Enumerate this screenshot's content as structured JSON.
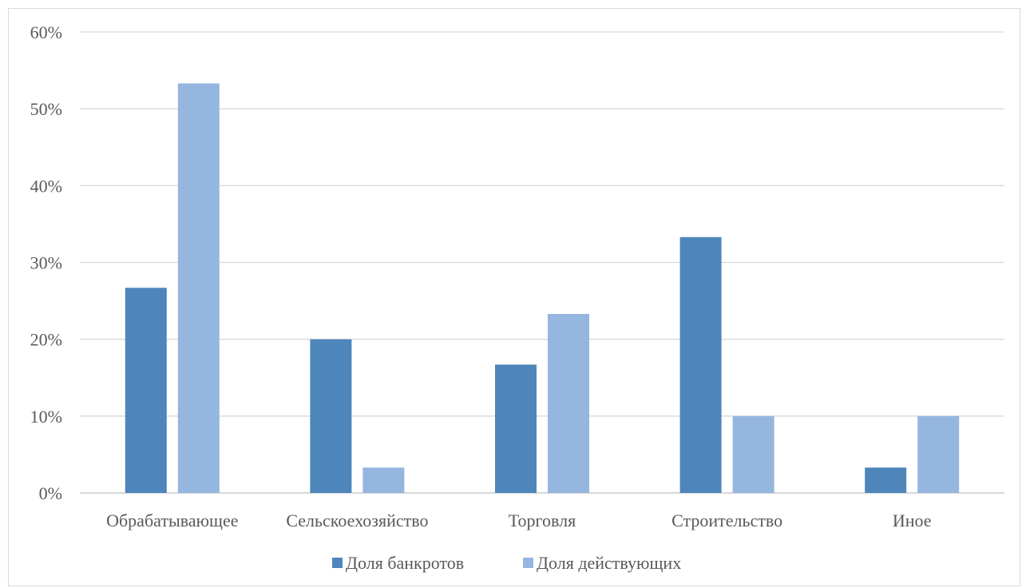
{
  "chart_data": {
    "type": "bar",
    "categories": [
      "Обрабатывающее",
      "Сельскоехозяйство",
      "Торговля",
      "Строительство",
      "Иное"
    ],
    "series": [
      {
        "name": "Доля банкротов",
        "values": [
          26.7,
          20.0,
          16.7,
          33.3,
          3.3
        ],
        "color": "#4e86bb"
      },
      {
        "name": "Доля действующих",
        "values": [
          53.3,
          3.3,
          23.3,
          10.0,
          10.0
        ],
        "color": "#95b6df"
      }
    ],
    "y_ticks": [
      "0%",
      "10%",
      "20%",
      "30%",
      "40%",
      "50%",
      "60%"
    ],
    "ylim": [
      0,
      60
    ],
    "grid": true,
    "legend_position": "bottom",
    "gridline_color": "#d9d9d9"
  }
}
